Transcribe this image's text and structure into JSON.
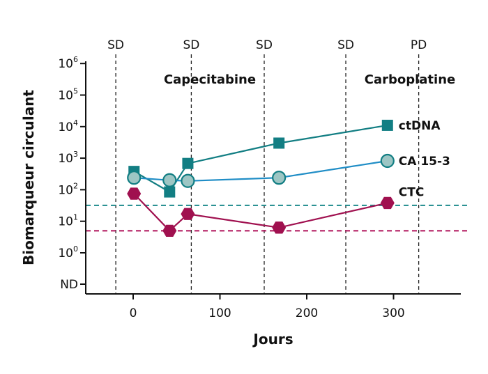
{
  "chart_data": {
    "type": "line",
    "title": "",
    "xlabel": "Jours",
    "ylabel": "Biomarqueur circulant",
    "xlim": [
      -60,
      380
    ],
    "yscale": "log",
    "x_ticks": [
      0,
      100,
      200,
      300
    ],
    "y_ticks": [
      {
        "base": "",
        "exp": "",
        "text": "ND",
        "value": "ND"
      },
      {
        "base": "10",
        "exp": "0",
        "value": 1
      },
      {
        "base": "10",
        "exp": "1",
        "value": 10
      },
      {
        "base": "10",
        "exp": "2",
        "value": 100
      },
      {
        "base": "10",
        "exp": "3",
        "value": 1000
      },
      {
        "base": "10",
        "exp": "4",
        "value": 10000
      },
      {
        "base": "10",
        "exp": "5",
        "value": 100000
      },
      {
        "base": "10",
        "exp": "6",
        "value": 1000000
      }
    ],
    "phases": [
      {
        "label": "SD",
        "x": -20
      },
      {
        "label": "SD",
        "x": 67
      },
      {
        "label": "SD",
        "x": 151
      },
      {
        "label": "SD",
        "x": 245
      },
      {
        "label": "PD",
        "x": 329
      }
    ],
    "treatments": [
      {
        "label": "Capecitabine"
      },
      {
        "label": "Carboplatine"
      }
    ],
    "thresholds": [
      {
        "y": 32,
        "color": "#1c8a8c"
      },
      {
        "y": 5,
        "color": "#b0125a"
      }
    ],
    "series": [
      {
        "name": "ctDNA",
        "color": "#127e83",
        "marker": "square",
        "points": [
          [
            1,
            380
          ],
          [
            42,
            85
          ],
          [
            63,
            680
          ],
          [
            168,
            3000
          ],
          [
            293,
            11000
          ]
        ]
      },
      {
        "name": "CA 15-3",
        "color": "#1f8dc6",
        "marker": "circle",
        "points": [
          [
            1,
            240
          ],
          [
            42,
            200
          ],
          [
            63,
            190
          ],
          [
            168,
            240
          ],
          [
            293,
            820
          ]
        ]
      },
      {
        "name": "CTC",
        "color": "#a0104f",
        "marker": "hexagon",
        "points": [
          [
            1,
            75
          ],
          [
            42,
            5
          ],
          [
            63,
            17
          ],
          [
            168,
            6.3
          ],
          [
            293,
            38
          ]
        ]
      }
    ],
    "grid": false,
    "legend": "inline-right"
  }
}
